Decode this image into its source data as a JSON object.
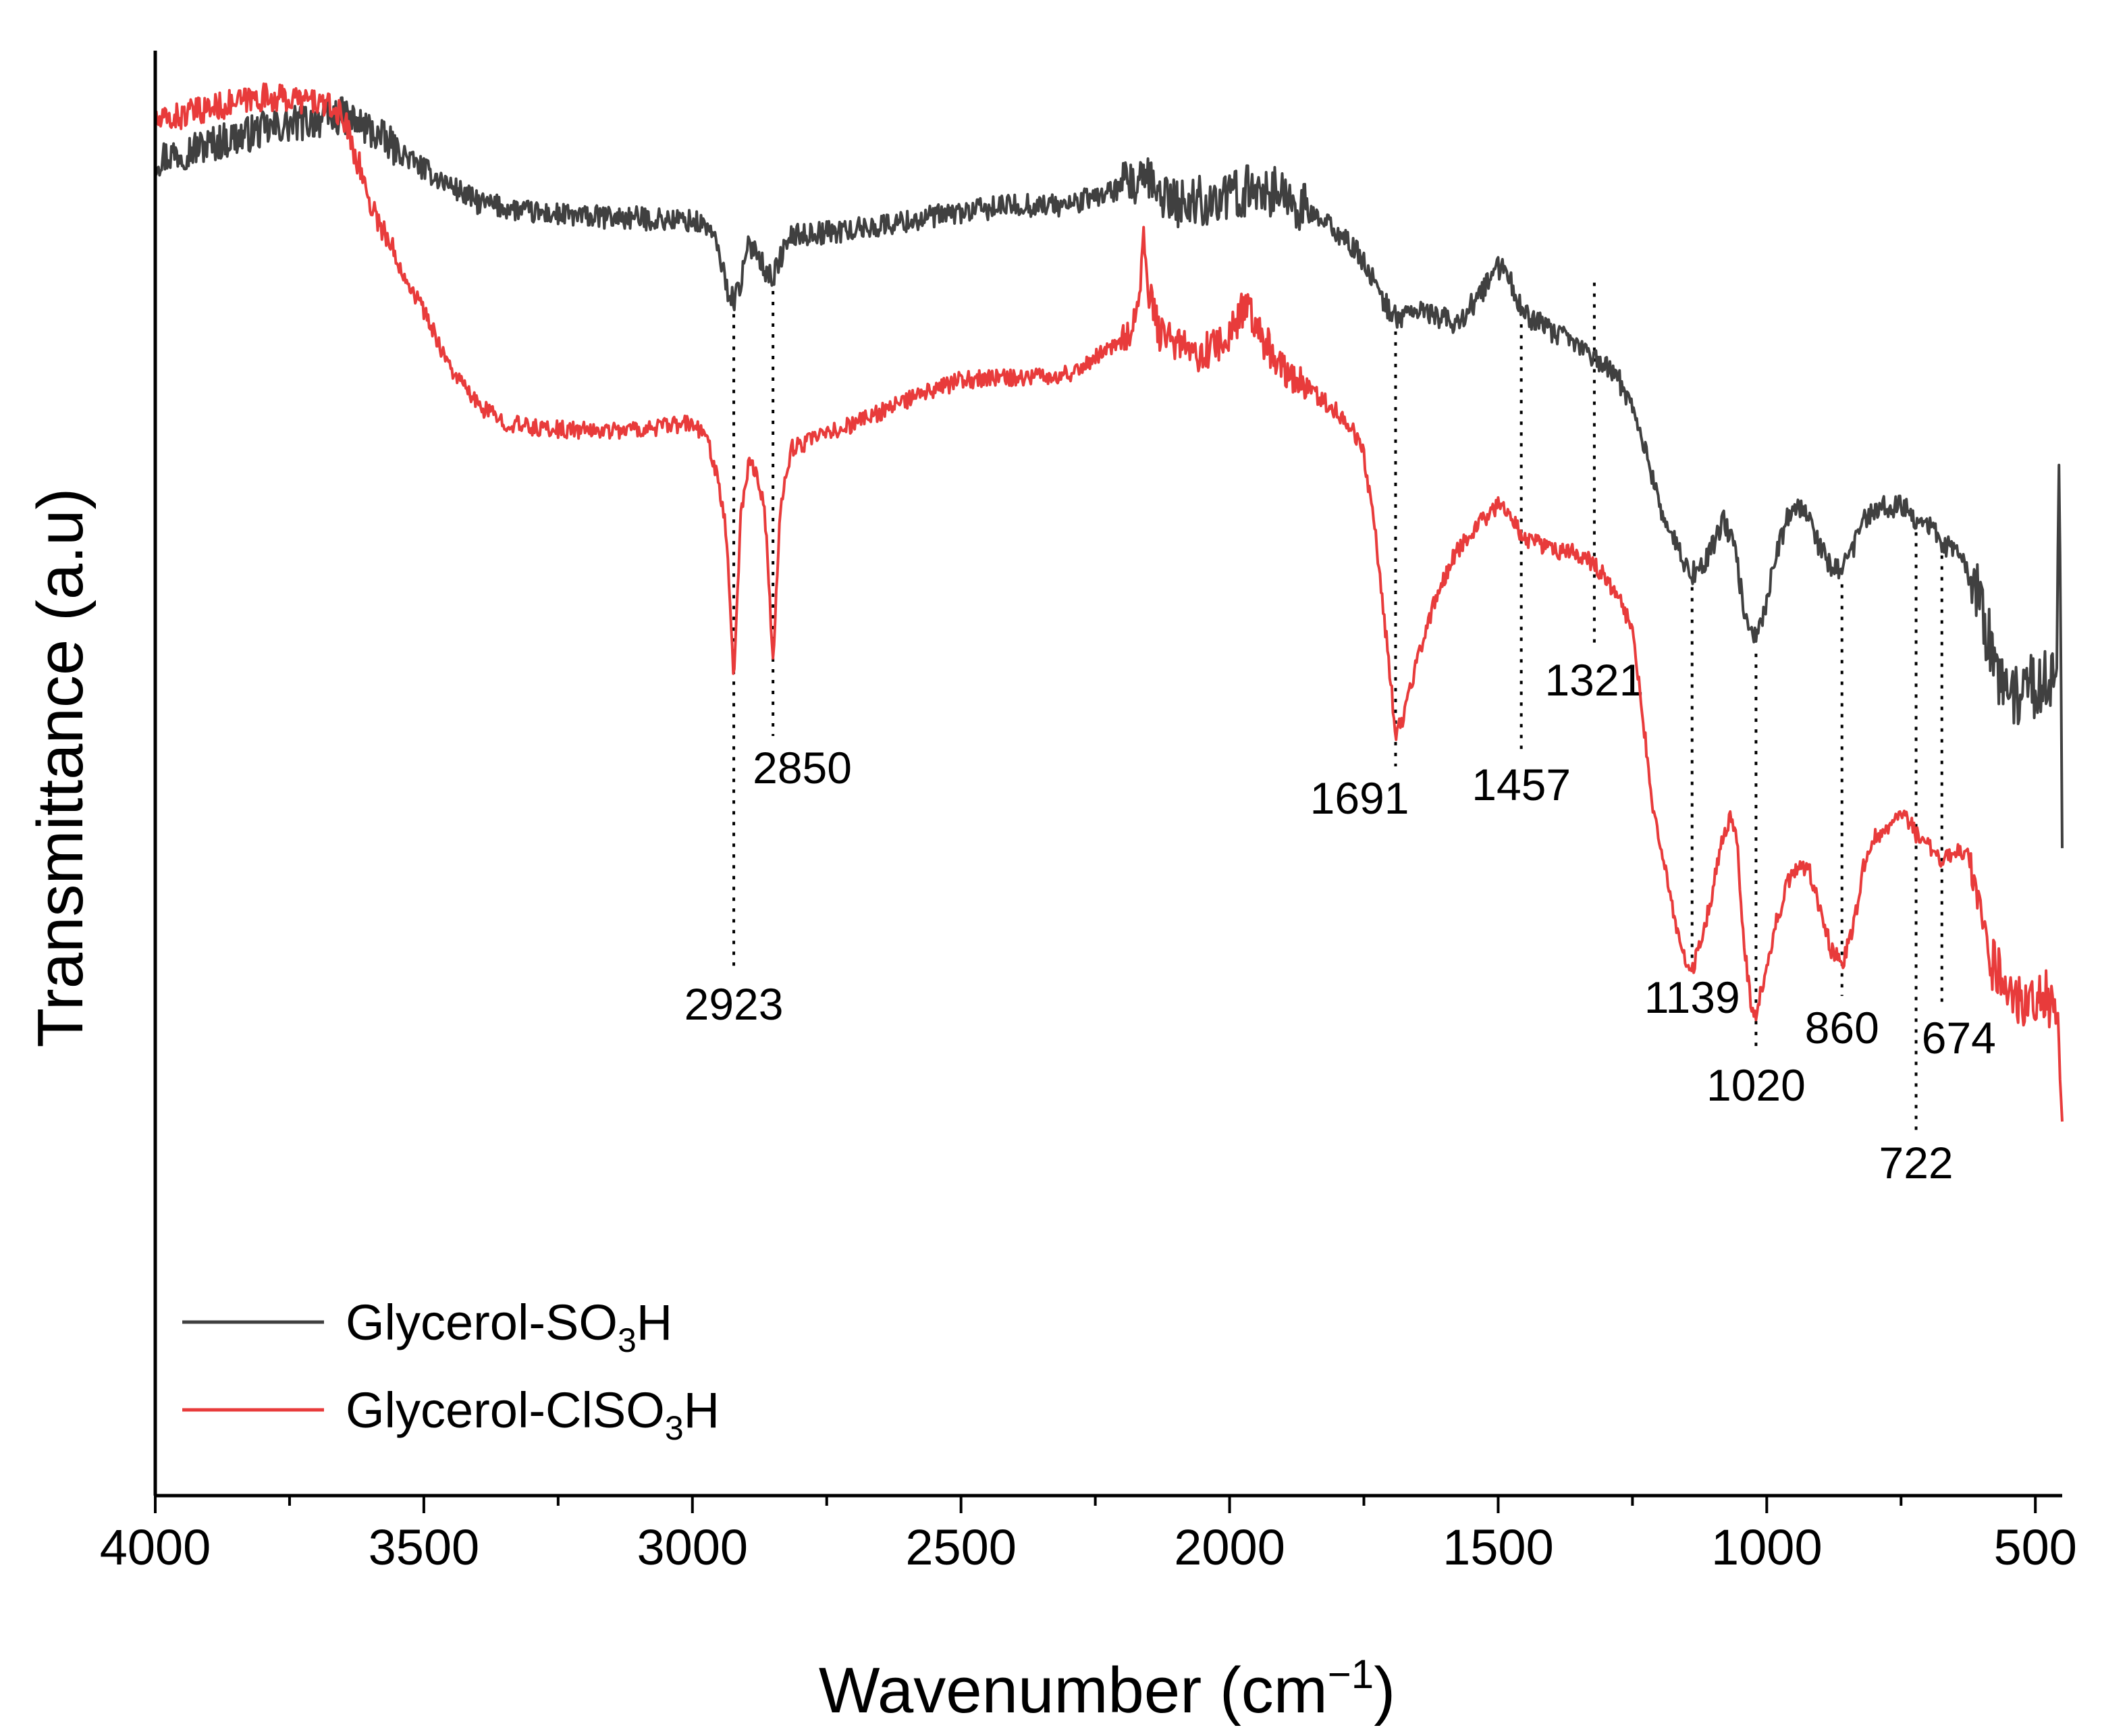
{
  "chart_data": {
    "type": "line",
    "title": "",
    "xlabel": "Wavenumber (cm",
    "xlabel_sup": "−1",
    "xlabel_close": ")",
    "ylabel": "Transmittance (a.u)",
    "xlim": [
      4000,
      450
    ],
    "ylim": [
      0,
      100
    ],
    "x_reversed": true,
    "yticks_labeled": false,
    "grid": false,
    "xticks": [
      "4000",
      "3500",
      "3000",
      "2500",
      "2000",
      "1500",
      "1000",
      "500"
    ],
    "xtick_values": [
      4000,
      3500,
      3000,
      2500,
      2000,
      1500,
      1000,
      500
    ],
    "minor_xtick_values": [
      3750,
      3250,
      2750,
      2250,
      1750,
      1250,
      750
    ],
    "legend_position": "bottom-left",
    "series": [
      {
        "name": "Glycerol-SO3H",
        "label_main": "Glycerol-SO",
        "label_sub": "3",
        "label_tail": "H",
        "color": "#404040",
        "noise": 0.8,
        "points": [
          [
            4000,
            92.5
          ],
          [
            3900,
            93.5
          ],
          [
            3800,
            94.5
          ],
          [
            3700,
            95.2
          ],
          [
            3650,
            95.5
          ],
          [
            3600,
            94.5
          ],
          [
            3500,
            91.8
          ],
          [
            3400,
            89.5
          ],
          [
            3300,
            88.8
          ],
          [
            3200,
            88.5
          ],
          [
            3100,
            88.4
          ],
          [
            3000,
            88.2
          ],
          [
            2970,
            87.8
          ],
          [
            2950,
            86
          ],
          [
            2935,
            83.5
          ],
          [
            2923,
            82.7
          ],
          [
            2910,
            84
          ],
          [
            2895,
            86.5
          ],
          [
            2880,
            86.3
          ],
          [
            2865,
            84.8
          ],
          [
            2850,
            84.3
          ],
          [
            2835,
            85.8
          ],
          [
            2815,
            87.2
          ],
          [
            2700,
            87.6
          ],
          [
            2500,
            88.8
          ],
          [
            2400,
            89.3
          ],
          [
            2300,
            89.3
          ],
          [
            2200,
            90.5
          ],
          [
            2150,
            90.8
          ],
          [
            2100,
            89.4
          ],
          [
            2000,
            89.8
          ],
          [
            1950,
            90.6
          ],
          [
            1900,
            90
          ],
          [
            1800,
            87.5
          ],
          [
            1750,
            85.5
          ],
          [
            1720,
            83
          ],
          [
            1691,
            81.5
          ],
          [
            1660,
            82
          ],
          [
            1620,
            81.8
          ],
          [
            1580,
            81
          ],
          [
            1540,
            82.8
          ],
          [
            1500,
            85
          ],
          [
            1480,
            84.5
          ],
          [
            1457,
            82
          ],
          [
            1400,
            80.5
          ],
          [
            1360,
            79.8
          ],
          [
            1321,
            78.8
          ],
          [
            1280,
            77.5
          ],
          [
            1250,
            75.5
          ],
          [
            1220,
            71.5
          ],
          [
            1190,
            67.5
          ],
          [
            1160,
            65
          ],
          [
            1139,
            63.8
          ],
          [
            1120,
            64.2
          ],
          [
            1100,
            65.8
          ],
          [
            1080,
            67.5
          ],
          [
            1060,
            65.5
          ],
          [
            1040,
            61
          ],
          [
            1020,
            59.2
          ],
          [
            1000,
            62
          ],
          [
            980,
            65.5
          ],
          [
            960,
            67.8
          ],
          [
            940,
            68.3
          ],
          [
            920,
            67.5
          ],
          [
            900,
            65.5
          ],
          [
            880,
            64.2
          ],
          [
            860,
            64
          ],
          [
            840,
            65.5
          ],
          [
            820,
            67.5
          ],
          [
            780,
            68.4
          ],
          [
            740,
            68.6
          ],
          [
            722,
            67.6
          ],
          [
            700,
            67.1
          ],
          [
            674,
            66
          ],
          [
            640,
            65
          ],
          [
            600,
            61.5
          ],
          [
            570,
            56.5
          ],
          [
            540,
            55.2
          ],
          [
            520,
            56.5
          ],
          [
            500,
            56
          ],
          [
            485,
            56.5
          ],
          [
            470,
            56
          ],
          [
            460,
            58
          ],
          [
            456,
            72
          ],
          [
            452,
            55
          ],
          [
            450,
            45
          ]
        ]
      },
      {
        "name": "Glycerol-ClSO3H",
        "label_main": "Glycerol-ClSO",
        "label_sub": "3",
        "label_tail": "H",
        "color": "#e83b3b",
        "noise": 0.6,
        "points": [
          [
            4000,
            95
          ],
          [
            3900,
            96
          ],
          [
            3800,
            96.8
          ],
          [
            3700,
            96.5
          ],
          [
            3650,
            95.5
          ],
          [
            3620,
            92
          ],
          [
            3600,
            89.5
          ],
          [
            3550,
            85.5
          ],
          [
            3500,
            82
          ],
          [
            3450,
            78
          ],
          [
            3400,
            75.5
          ],
          [
            3350,
            74.3
          ],
          [
            3300,
            73.9
          ],
          [
            3200,
            73.7
          ],
          [
            3100,
            73.8
          ],
          [
            3050,
            74
          ],
          [
            3000,
            74.2
          ],
          [
            2970,
            73
          ],
          [
            2950,
            70
          ],
          [
            2935,
            66
          ],
          [
            2923,
            56.3
          ],
          [
            2910,
            68
          ],
          [
            2895,
            71.5
          ],
          [
            2880,
            71
          ],
          [
            2865,
            68
          ],
          [
            2850,
            57.6
          ],
          [
            2835,
            69
          ],
          [
            2815,
            72.5
          ],
          [
            2700,
            74.2
          ],
          [
            2600,
            75.8
          ],
          [
            2500,
            77.2
          ],
          [
            2400,
            77.4
          ],
          [
            2300,
            77.6
          ],
          [
            2200,
            80
          ],
          [
            2170,
            82
          ],
          [
            2160,
            86.5
          ],
          [
            2150,
            83
          ],
          [
            2130,
            80.5
          ],
          [
            2100,
            79.5
          ],
          [
            2050,
            79
          ],
          [
            2000,
            80.3
          ],
          [
            1970,
            82.5
          ],
          [
            1950,
            80.5
          ],
          [
            1900,
            78.2
          ],
          [
            1850,
            76.5
          ],
          [
            1800,
            75
          ],
          [
            1770,
            73.8
          ],
          [
            1750,
            72
          ],
          [
            1730,
            67
          ],
          [
            1710,
            60
          ],
          [
            1691,
            52.8
          ],
          [
            1680,
            53.5
          ],
          [
            1660,
            56.5
          ],
          [
            1620,
            61.8
          ],
          [
            1580,
            65.2
          ],
          [
            1540,
            67.2
          ],
          [
            1500,
            68.5
          ],
          [
            1480,
            68.3
          ],
          [
            1457,
            66.3
          ],
          [
            1430,
            66
          ],
          [
            1400,
            65.4
          ],
          [
            1360,
            65.3
          ],
          [
            1321,
            64.5
          ],
          [
            1280,
            62.5
          ],
          [
            1250,
            60
          ],
          [
            1230,
            53.5
          ],
          [
            1210,
            47
          ],
          [
            1190,
            43.5
          ],
          [
            1170,
            39.5
          ],
          [
            1150,
            37
          ],
          [
            1139,
            36.4
          ],
          [
            1120,
            38.5
          ],
          [
            1100,
            42
          ],
          [
            1080,
            46
          ],
          [
            1065,
            47
          ],
          [
            1055,
            45
          ],
          [
            1045,
            39
          ],
          [
            1030,
            34.2
          ],
          [
            1020,
            33.2
          ],
          [
            1000,
            36.8
          ],
          [
            980,
            40
          ],
          [
            960,
            42.5
          ],
          [
            940,
            43.8
          ],
          [
            920,
            43.2
          ],
          [
            900,
            40.5
          ],
          [
            880,
            37.8
          ],
          [
            860,
            36.8
          ],
          [
            840,
            39
          ],
          [
            820,
            43.5
          ],
          [
            800,
            45.5
          ],
          [
            780,
            46.2
          ],
          [
            760,
            46.6
          ],
          [
            740,
            47
          ],
          [
            722,
            45.8
          ],
          [
            700,
            45
          ],
          [
            674,
            43.8
          ],
          [
            640,
            44.8
          ],
          [
            620,
            44
          ],
          [
            600,
            40
          ],
          [
            580,
            36.8
          ],
          [
            550,
            35
          ],
          [
            520,
            34.2
          ],
          [
            500,
            34.5
          ],
          [
            480,
            34.8
          ],
          [
            470,
            33.5
          ],
          [
            460,
            34
          ],
          [
            455,
            30
          ],
          [
            450,
            24.5
          ]
        ]
      }
    ],
    "peak_markers": [
      {
        "label": "2923",
        "x": 2923,
        "label_anchor": "middle"
      },
      {
        "label": "2850",
        "x": 2850,
        "label_anchor": "start"
      },
      {
        "label": "1691",
        "x": 1691,
        "label_anchor": "end"
      },
      {
        "label": "1457",
        "x": 1457,
        "label_anchor": "middle"
      },
      {
        "label": "1321",
        "x": 1321,
        "label_anchor": "middle"
      },
      {
        "label": "1139",
        "x": 1139,
        "label_anchor": "middle"
      },
      {
        "label": "1020",
        "x": 1020,
        "label_anchor": "middle"
      },
      {
        "label": "860",
        "x": 860,
        "label_anchor": "middle"
      },
      {
        "label": "722",
        "x": 722,
        "label_anchor": "middle"
      },
      {
        "label": "674",
        "x": 674,
        "label_anchor": "start"
      }
    ]
  }
}
